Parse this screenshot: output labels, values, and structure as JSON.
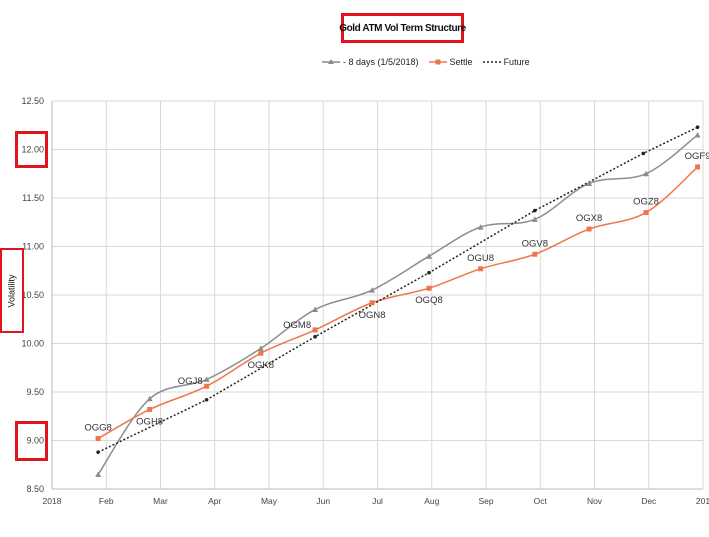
{
  "chart_data": {
    "type": "line",
    "title": "Gold ATM Vol Term Structure",
    "ylabel": "Volatility",
    "xlabel": "",
    "ylim": [
      8.5,
      12.5
    ],
    "yticks": [
      8.5,
      9.0,
      9.5,
      10.0,
      10.5,
      11.0,
      11.5,
      12.0,
      12.5
    ],
    "ytick_labels": [
      "8.50",
      "9.00",
      "9.50",
      "10.00",
      "10.50",
      "11.00",
      "11.50",
      "12.00",
      "12.50"
    ],
    "xlim": [
      0,
      12
    ],
    "xtick_labels": [
      "2018",
      "Feb",
      "Mar",
      "Apr",
      "May",
      "Jun",
      "Jul",
      "Aug",
      "Sep",
      "Oct",
      "Nov",
      "Dec",
      "201"
    ],
    "grid": true,
    "legend_position": "top-center",
    "series": [
      {
        "name": "- 8 days (1/5/2018)",
        "color": "#8c8c8c",
        "style": "solid",
        "marker": "triangle",
        "x": [
          0.85,
          1.8,
          2.85,
          3.85,
          4.85,
          5.9,
          6.95,
          7.9,
          8.9,
          9.9,
          10.95,
          11.9
        ],
        "values": [
          8.65,
          9.43,
          9.63,
          9.95,
          10.35,
          10.55,
          10.9,
          11.2,
          11.28,
          11.65,
          11.75,
          12.15
        ]
      },
      {
        "name": "Settle",
        "color": "#f0754a",
        "style": "solid",
        "marker": "square",
        "x": [
          0.85,
          1.8,
          2.85,
          3.85,
          4.85,
          5.9,
          6.95,
          7.9,
          8.9,
          9.9,
          10.95,
          11.9
        ],
        "values": [
          9.02,
          9.32,
          9.56,
          9.9,
          10.14,
          10.42,
          10.57,
          10.77,
          10.92,
          11.18,
          11.35,
          11.82
        ]
      },
      {
        "name": "Future",
        "color": "#222222",
        "style": "dotted",
        "marker": "dot",
        "x": [
          0.85,
          2.85,
          4.85,
          6.95,
          8.9,
          10.9,
          11.9
        ],
        "values": [
          8.88,
          9.42,
          10.07,
          10.73,
          11.37,
          11.96,
          12.23
        ]
      }
    ],
    "annotations": [
      {
        "text": "OGG8",
        "x": 0.85,
        "y": 9.02,
        "pos": "above"
      },
      {
        "text": "OGH8",
        "x": 1.8,
        "y": 9.32,
        "pos": "below"
      },
      {
        "text": "OGJ8",
        "x": 2.85,
        "y": 9.56,
        "pos": "left"
      },
      {
        "text": "OGK8",
        "x": 3.85,
        "y": 9.9,
        "pos": "below"
      },
      {
        "text": "OGM8",
        "x": 4.85,
        "y": 10.14,
        "pos": "left"
      },
      {
        "text": "OGN8",
        "x": 5.9,
        "y": 10.42,
        "pos": "below"
      },
      {
        "text": "OGQ8",
        "x": 6.95,
        "y": 10.57,
        "pos": "below"
      },
      {
        "text": "OGU8",
        "x": 7.9,
        "y": 10.77,
        "pos": "above"
      },
      {
        "text": "OGV8",
        "x": 8.9,
        "y": 10.92,
        "pos": "above"
      },
      {
        "text": "OGX8",
        "x": 9.9,
        "y": 11.18,
        "pos": "above"
      },
      {
        "text": "OGZ8",
        "x": 10.95,
        "y": 11.35,
        "pos": "above"
      },
      {
        "text": "OGF9",
        "x": 11.9,
        "y": 11.82,
        "pos": "above"
      }
    ],
    "highlighted_ticks": [
      "12.00",
      "9.00"
    ]
  }
}
